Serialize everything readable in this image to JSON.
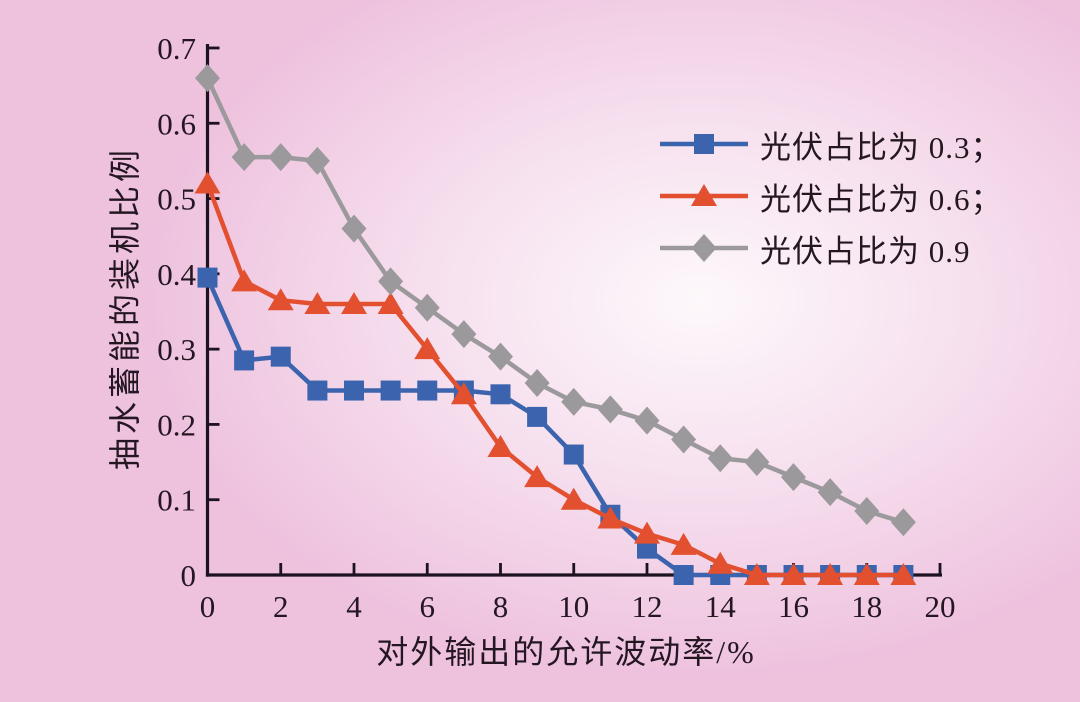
{
  "page": {
    "background_base": "#eec1dd",
    "background_mid": "#f6dfee",
    "background_glow": "#fdf8fb",
    "text_color": "#241722",
    "axis_color": "#1c1220"
  },
  "chart_data": {
    "type": "line",
    "title": "",
    "xlabel": "对外输出的允许波动率/%",
    "ylabel": "抽水蓄能的装机比例",
    "xlim": [
      0,
      20
    ],
    "ylim": [
      0,
      0.7
    ],
    "xticks": [
      0,
      2,
      4,
      6,
      8,
      10,
      12,
      14,
      16,
      18,
      20
    ],
    "xtick_labels": [
      "0",
      "2",
      "4",
      "6",
      "8",
      "10",
      "12",
      "14",
      "16",
      "18",
      "20"
    ],
    "yticks": [
      0,
      0.1,
      0.2,
      0.3,
      0.4,
      0.5,
      0.6,
      0.7
    ],
    "ytick_labels": [
      "0",
      "0.1",
      "0.2",
      "0.3",
      "0.4",
      "0.5",
      "0.6",
      "0.7"
    ],
    "grid": false,
    "legend_position": "upper right",
    "x": [
      0,
      1,
      2,
      3,
      4,
      5,
      6,
      7,
      8,
      9,
      10,
      11,
      12,
      13,
      14,
      15,
      16,
      17,
      18,
      19
    ],
    "series": [
      {
        "name": "光伏占比为 0.3；",
        "marker": "square",
        "color": "#3c63ad",
        "values": [
          0.395,
          0.285,
          0.29,
          0.245,
          0.245,
          0.245,
          0.245,
          0.245,
          0.24,
          0.21,
          0.16,
          0.08,
          0.035,
          0,
          0,
          0,
          0,
          0,
          0,
          0
        ]
      },
      {
        "name": "光伏占比为 0.6；",
        "marker": "triangle",
        "color": "#e2502f",
        "values": [
          0.52,
          0.39,
          0.365,
          0.36,
          0.36,
          0.36,
          0.3,
          0.24,
          0.17,
          0.13,
          0.1,
          0.075,
          0.055,
          0.04,
          0.015,
          0,
          0,
          0,
          0,
          0
        ]
      },
      {
        "name": "光伏占比为 0.9",
        "marker": "diamond",
        "color": "#9b999b",
        "values": [
          0.66,
          0.555,
          0.555,
          0.55,
          0.46,
          0.39,
          0.355,
          0.32,
          0.29,
          0.255,
          0.23,
          0.22,
          0.205,
          0.18,
          0.155,
          0.15,
          0.13,
          0.11,
          0.085,
          0.07
        ]
      }
    ]
  }
}
